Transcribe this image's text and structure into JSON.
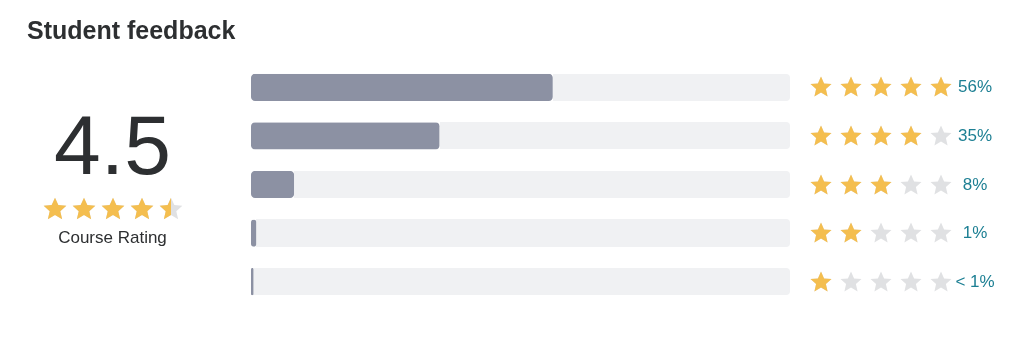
{
  "chart_data": [
    {
      "type": "other",
      "title": "Student feedback",
      "subtitle": "4.5",
      "annotations": [
        "Course Rating"
      ]
    },
    {
      "type": "bar",
      "orientation": "horizontal",
      "categories": [
        null,
        null,
        null,
        null,
        null
      ],
      "values": [
        56,
        35,
        8,
        1,
        0.5
      ],
      "value_labels": [
        "56%",
        "35%",
        "8%",
        "1%",
        "< 1%"
      ],
      "color": "#8c91a3",
      "xlim": [
        0,
        100
      ]
    }
  ]
}
